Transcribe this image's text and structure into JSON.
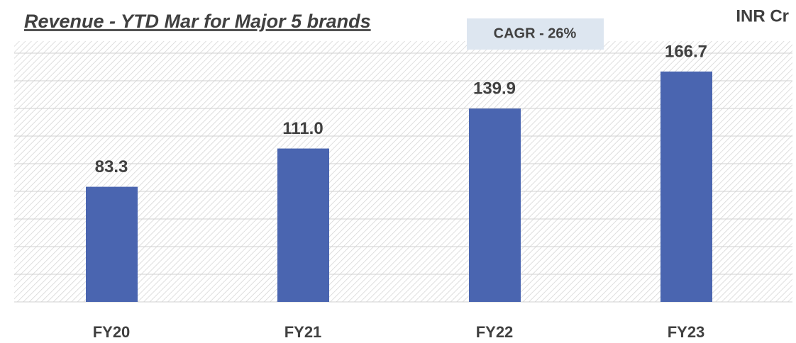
{
  "chart_data": {
    "type": "bar",
    "title": "Revenue - YTD Mar for Major 5 brands",
    "annotation": "CAGR - 26%",
    "unit_label": "INR Cr",
    "categories": [
      "FY20",
      "FY21",
      "FY22",
      "FY23"
    ],
    "values": [
      83.3,
      111.0,
      139.9,
      166.7
    ],
    "value_labels": [
      "83.3",
      "111.0",
      "139.9",
      "166.7"
    ],
    "color": "#4a65b0",
    "ylim": [
      0,
      180
    ],
    "yticks": [
      0,
      20,
      40,
      60,
      80,
      100,
      120,
      140,
      160,
      180
    ],
    "grid": true
  }
}
